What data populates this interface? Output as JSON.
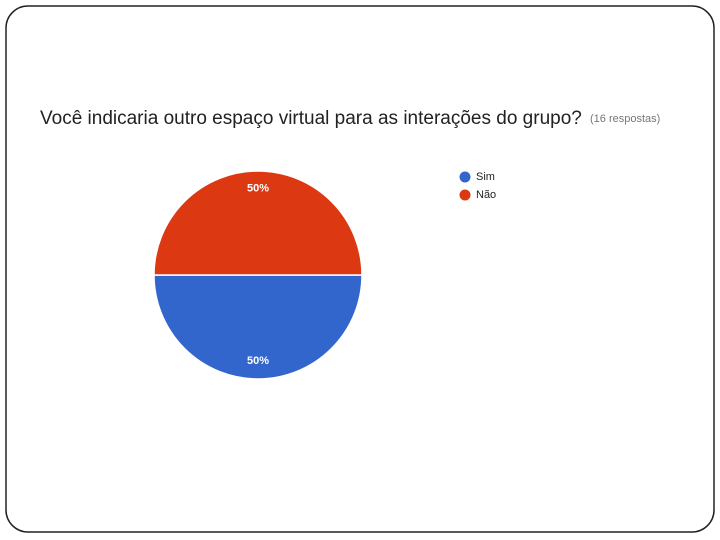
{
  "chart_data": {
    "type": "pie",
    "title": "Você indicaria outro espaço virtual para as interações do grupo?",
    "subtitle": "(16 respostas)",
    "categories": [
      "Sim",
      "Não"
    ],
    "values": [
      50,
      50
    ],
    "value_labels": [
      "50%",
      "50%"
    ],
    "colors": [
      "#3366cc",
      "#dc3912"
    ],
    "legend": "right"
  }
}
